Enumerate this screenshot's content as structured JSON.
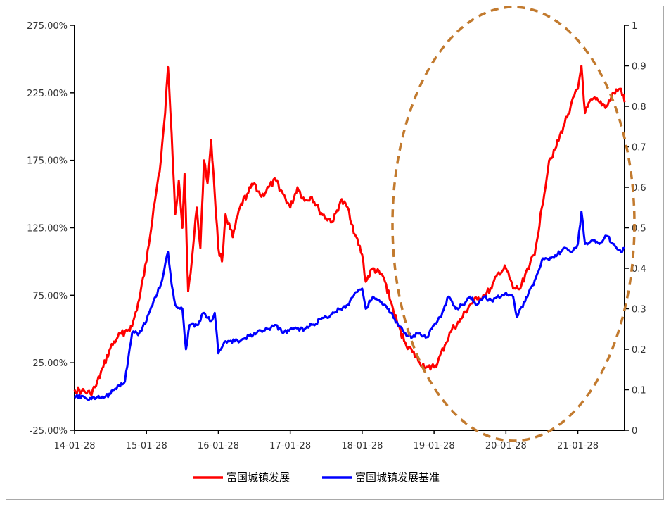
{
  "chart_data": {
    "type": "line",
    "title": "",
    "xlabel": "",
    "ylabel": "",
    "x_tick_labels": [
      "14-01-28",
      "15-01-28",
      "16-01-28",
      "17-01-28",
      "18-01-28",
      "19-01-28",
      "20-01-28",
      "21-01-28"
    ],
    "y_left_tick_labels": [
      "275.00%",
      "225.00%",
      "175.00%",
      "125.00%",
      "75.00%",
      "25.00%",
      "-25.00%"
    ],
    "y_right_tick_labels": [
      "1",
      "0.9",
      "0.8",
      "0.7",
      "0.6",
      "0.5",
      "0.4",
      "0.3",
      "0.2",
      "0.1",
      "0"
    ],
    "ylim_left": [
      -25,
      275
    ],
    "ylim_right": [
      0,
      1
    ],
    "legend_position": "bottom",
    "grid": false,
    "annotation": "dashed ellipse highlighting 2019–2021",
    "series": [
      {
        "name": "富国城镇发展",
        "axis": "left",
        "color": "#ff0000",
        "points": [
          [
            0.0,
            5
          ],
          [
            0.1,
            4
          ],
          [
            0.22,
            2
          ],
          [
            0.3,
            8
          ],
          [
            0.4,
            22
          ],
          [
            0.5,
            36
          ],
          [
            0.6,
            44
          ],
          [
            0.7,
            48
          ],
          [
            0.8,
            52
          ],
          [
            0.9,
            72
          ],
          [
            1.0,
            100
          ],
          [
            1.1,
            140
          ],
          [
            1.2,
            175
          ],
          [
            1.26,
            210
          ],
          [
            1.3,
            244
          ],
          [
            1.35,
            195
          ],
          [
            1.4,
            135
          ],
          [
            1.45,
            160
          ],
          [
            1.5,
            125
          ],
          [
            1.53,
            165
          ],
          [
            1.58,
            78
          ],
          [
            1.63,
            100
          ],
          [
            1.7,
            140
          ],
          [
            1.75,
            110
          ],
          [
            1.8,
            175
          ],
          [
            1.85,
            158
          ],
          [
            1.9,
            190
          ],
          [
            1.95,
            150
          ],
          [
            2.0,
            110
          ],
          [
            2.05,
            100
          ],
          [
            2.1,
            135
          ],
          [
            2.2,
            118
          ],
          [
            2.3,
            140
          ],
          [
            2.4,
            150
          ],
          [
            2.5,
            158
          ],
          [
            2.6,
            148
          ],
          [
            2.7,
            155
          ],
          [
            2.8,
            160
          ],
          [
            2.9,
            150
          ],
          [
            3.0,
            140
          ],
          [
            3.1,
            155
          ],
          [
            3.2,
            145
          ],
          [
            3.3,
            148
          ],
          [
            3.4,
            138
          ],
          [
            3.5,
            132
          ],
          [
            3.6,
            130
          ],
          [
            3.7,
            145
          ],
          [
            3.8,
            140
          ],
          [
            3.9,
            120
          ],
          [
            4.0,
            105
          ],
          [
            4.05,
            85
          ],
          [
            4.15,
            95
          ],
          [
            4.3,
            88
          ],
          [
            4.4,
            70
          ],
          [
            4.5,
            52
          ],
          [
            4.6,
            40
          ],
          [
            4.7,
            33
          ],
          [
            4.8,
            25
          ],
          [
            4.9,
            22
          ],
          [
            4.95,
            20
          ],
          [
            5.05,
            25
          ],
          [
            5.15,
            38
          ],
          [
            5.25,
            50
          ],
          [
            5.35,
            55
          ],
          [
            5.5,
            68
          ],
          [
            5.6,
            72
          ],
          [
            5.7,
            75
          ],
          [
            5.8,
            80
          ],
          [
            5.9,
            92
          ],
          [
            6.0,
            95
          ],
          [
            6.1,
            80
          ],
          [
            6.2,
            80
          ],
          [
            6.3,
            95
          ],
          [
            6.4,
            105
          ],
          [
            6.5,
            140
          ],
          [
            6.6,
            175
          ],
          [
            6.7,
            185
          ],
          [
            6.8,
            200
          ],
          [
            6.9,
            215
          ],
          [
            7.0,
            228
          ],
          [
            7.05,
            245
          ],
          [
            7.1,
            210
          ],
          [
            7.2,
            220
          ],
          [
            7.3,
            218
          ],
          [
            7.4,
            215
          ],
          [
            7.5,
            225
          ],
          [
            7.6,
            228
          ],
          [
            7.65,
            218
          ]
        ]
      },
      {
        "name": "富国城镇发展基准",
        "axis": "right",
        "color": "#0000ff",
        "points": [
          [
            0.0,
            0.08
          ],
          [
            0.1,
            0.085
          ],
          [
            0.2,
            0.075
          ],
          [
            0.3,
            0.08
          ],
          [
            0.4,
            0.08
          ],
          [
            0.5,
            0.09
          ],
          [
            0.6,
            0.11
          ],
          [
            0.7,
            0.12
          ],
          [
            0.8,
            0.24
          ],
          [
            0.9,
            0.24
          ],
          [
            1.0,
            0.27
          ],
          [
            1.1,
            0.32
          ],
          [
            1.2,
            0.36
          ],
          [
            1.3,
            0.44
          ],
          [
            1.35,
            0.36
          ],
          [
            1.4,
            0.31
          ],
          [
            1.5,
            0.3
          ],
          [
            1.55,
            0.2
          ],
          [
            1.6,
            0.26
          ],
          [
            1.7,
            0.26
          ],
          [
            1.8,
            0.29
          ],
          [
            1.9,
            0.27
          ],
          [
            1.95,
            0.29
          ],
          [
            2.0,
            0.19
          ],
          [
            2.1,
            0.22
          ],
          [
            2.3,
            0.22
          ],
          [
            2.5,
            0.24
          ],
          [
            2.7,
            0.25
          ],
          [
            2.8,
            0.26
          ],
          [
            2.9,
            0.24
          ],
          [
            3.0,
            0.25
          ],
          [
            3.2,
            0.25
          ],
          [
            3.3,
            0.26
          ],
          [
            3.5,
            0.28
          ],
          [
            3.7,
            0.3
          ],
          [
            3.8,
            0.31
          ],
          [
            3.9,
            0.34
          ],
          [
            4.0,
            0.35
          ],
          [
            4.05,
            0.3
          ],
          [
            4.15,
            0.33
          ],
          [
            4.3,
            0.31
          ],
          [
            4.4,
            0.29
          ],
          [
            4.5,
            0.26
          ],
          [
            4.6,
            0.24
          ],
          [
            4.7,
            0.23
          ],
          [
            4.8,
            0.24
          ],
          [
            4.9,
            0.23
          ],
          [
            5.0,
            0.26
          ],
          [
            5.1,
            0.28
          ],
          [
            5.2,
            0.33
          ],
          [
            5.3,
            0.3
          ],
          [
            5.4,
            0.31
          ],
          [
            5.5,
            0.33
          ],
          [
            5.6,
            0.31
          ],
          [
            5.7,
            0.33
          ],
          [
            5.8,
            0.32
          ],
          [
            6.0,
            0.34
          ],
          [
            6.1,
            0.33
          ],
          [
            6.15,
            0.28
          ],
          [
            6.3,
            0.33
          ],
          [
            6.4,
            0.37
          ],
          [
            6.5,
            0.42
          ],
          [
            6.6,
            0.42
          ],
          [
            6.7,
            0.43
          ],
          [
            6.8,
            0.45
          ],
          [
            6.9,
            0.44
          ],
          [
            7.0,
            0.46
          ],
          [
            7.05,
            0.54
          ],
          [
            7.1,
            0.46
          ],
          [
            7.2,
            0.47
          ],
          [
            7.3,
            0.46
          ],
          [
            7.4,
            0.48
          ],
          [
            7.5,
            0.46
          ],
          [
            7.6,
            0.44
          ],
          [
            7.65,
            0.45
          ]
        ]
      }
    ]
  }
}
